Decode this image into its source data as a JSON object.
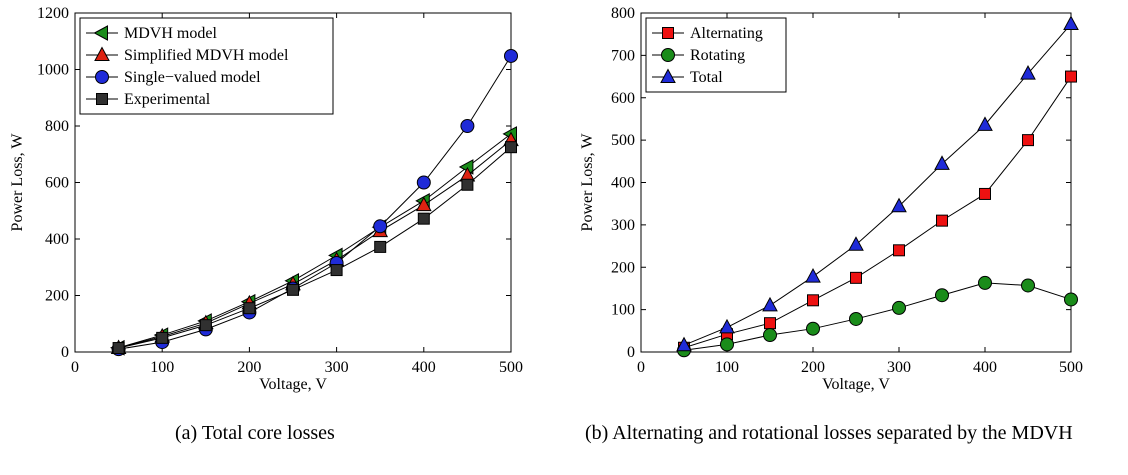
{
  "chart_data": [
    {
      "type": "line",
      "caption": "(a) Total core losses",
      "xlabel": "Voltage, V",
      "ylabel": "Power Loss, W",
      "xlim": [
        0,
        500
      ],
      "ylim": [
        0,
        1200
      ],
      "xticks": [
        0,
        100,
        200,
        300,
        400,
        500
      ],
      "yticks": [
        0,
        200,
        400,
        600,
        800,
        1000,
        1200
      ],
      "legend_position": "top-left",
      "grid": false,
      "x": [
        50,
        100,
        150,
        200,
        250,
        300,
        350,
        400,
        450,
        500
      ],
      "series": [
        {
          "name": "MDVH model",
          "marker": "triangle-left",
          "color": "#1a8c1a",
          "values": [
            15,
            60,
            110,
            178,
            252,
            342,
            442,
            535,
            655,
            772
          ]
        },
        {
          "name": "Simplified MDVH model",
          "marker": "triangle-up",
          "color": "#dd2211",
          "values": [
            14,
            55,
            102,
            172,
            240,
            325,
            428,
            520,
            625,
            750
          ]
        },
        {
          "name": "Single−valued model",
          "marker": "circle",
          "color": "#1f2bd8",
          "values": [
            10,
            35,
            80,
            140,
            225,
            315,
            445,
            600,
            800,
            1048
          ]
        },
        {
          "name": "Experimental",
          "marker": "square",
          "color": "#303030",
          "values": [
            14,
            50,
            95,
            155,
            220,
            290,
            372,
            472,
            592,
            725
          ]
        }
      ]
    },
    {
      "type": "line",
      "caption": "(b) Alternating and rotational losses separated by the MDVH",
      "xlabel": "Voltage, V",
      "ylabel": "Power Loss, W",
      "xlim": [
        0,
        500
      ],
      "ylim": [
        0,
        800
      ],
      "xticks": [
        0,
        100,
        200,
        300,
        400,
        500
      ],
      "yticks": [
        0,
        100,
        200,
        300,
        400,
        500,
        600,
        700,
        800
      ],
      "legend_position": "top-left",
      "grid": false,
      "x": [
        50,
        100,
        150,
        200,
        250,
        300,
        350,
        400,
        450,
        500
      ],
      "series": [
        {
          "name": "Alternating",
          "marker": "square",
          "color": "#ee1111",
          "values": [
            10,
            42,
            68,
            122,
            175,
            240,
            310,
            373,
            500,
            650
          ]
        },
        {
          "name": "Rotating",
          "marker": "circle",
          "color": "#1a8c1a",
          "values": [
            4,
            18,
            40,
            55,
            78,
            104,
            134,
            163,
            157,
            124
          ]
        },
        {
          "name": "Total",
          "marker": "triangle-up",
          "color": "#1f2bd8",
          "values": [
            16,
            58,
            110,
            178,
            253,
            344,
            444,
            536,
            657,
            774
          ]
        }
      ]
    }
  ]
}
